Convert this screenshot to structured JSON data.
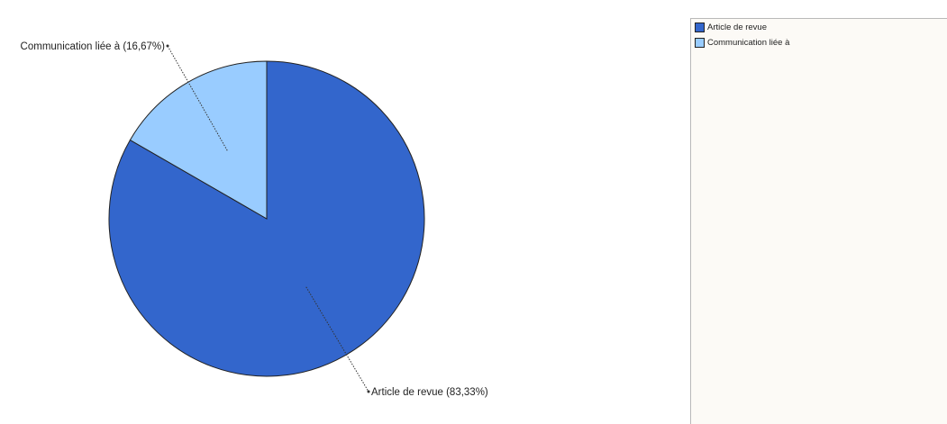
{
  "chart_data": {
    "type": "pie",
    "categories": [
      "Article de revue",
      "Communication liée à"
    ],
    "values": [
      83.33,
      16.67
    ],
    "unit": "%",
    "slice_labels": [
      "Article de revue (83,33%)",
      "Communication liée à (16,67%)"
    ],
    "colors": [
      "#3366cc",
      "#99ccff"
    ],
    "legend_position": "right",
    "legend": {
      "items": [
        {
          "label": "Article de revue",
          "color": "#3366cc"
        },
        {
          "label": "Communication liée à",
          "color": "#99ccff"
        }
      ]
    }
  }
}
